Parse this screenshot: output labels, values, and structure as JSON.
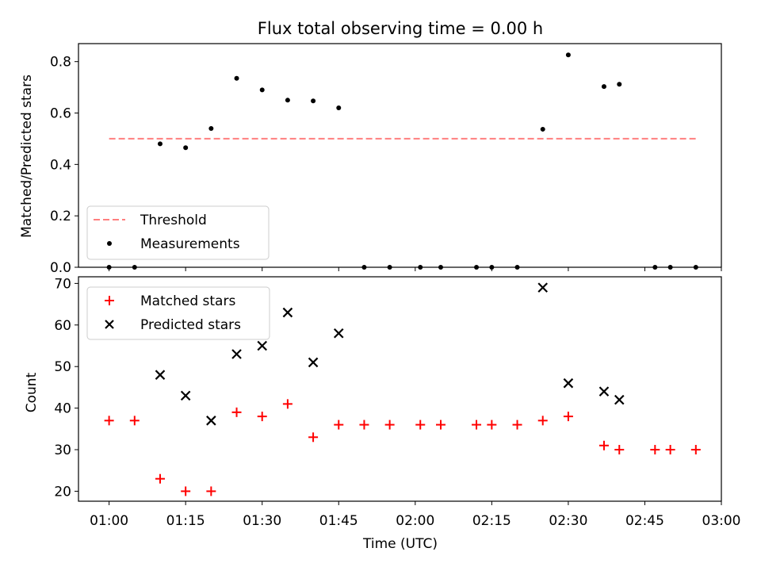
{
  "chart_data": [
    {
      "type": "scatter",
      "title": "Flux total observing time = 0.00 h",
      "xlabel": "",
      "ylabel": "Matched/Predicted stars",
      "ylim": [
        0,
        0.87
      ],
      "yticks": [
        "0.0",
        "0.2",
        "0.4",
        "0.6",
        "0.8"
      ],
      "grid": false,
      "legend": "lower-left",
      "threshold": {
        "name": "Threshold",
        "value": 0.5,
        "x_start": "01:00",
        "x_end": "02:55",
        "color": "#ff7f7f"
      },
      "series": [
        {
          "name": "Measurements",
          "color": "#000000",
          "points": [
            [
              "01:00",
              0.0
            ],
            [
              "01:05",
              0.0
            ],
            [
              "01:10",
              0.48
            ],
            [
              "01:15",
              0.465
            ],
            [
              "01:20",
              0.54
            ],
            [
              "01:25",
              0.735
            ],
            [
              "01:30",
              0.69
            ],
            [
              "01:35",
              0.65
            ],
            [
              "01:40",
              0.647
            ],
            [
              "01:45",
              0.62
            ],
            [
              "01:50",
              0.0
            ],
            [
              "01:55",
              0.0
            ],
            [
              "02:01",
              0.0
            ],
            [
              "02:05",
              0.0
            ],
            [
              "02:12",
              0.0
            ],
            [
              "02:15",
              0.0
            ],
            [
              "02:20",
              0.0
            ],
            [
              "02:25",
              0.537
            ],
            [
              "02:30",
              0.826
            ],
            [
              "02:37",
              0.703
            ],
            [
              "02:40",
              0.712
            ],
            [
              "02:47",
              0.0
            ],
            [
              "02:50",
              0.0
            ],
            [
              "02:55",
              0.0
            ]
          ]
        }
      ]
    },
    {
      "type": "scatter",
      "title": "",
      "xlabel": "Time (UTC)",
      "ylabel": "Count",
      "ylim": [
        17.6,
        71.6
      ],
      "yticks": [
        "20",
        "30",
        "40",
        "50",
        "60",
        "70"
      ],
      "xlim": [
        "00:54",
        "03:00"
      ],
      "xticks": [
        "01:00",
        "01:15",
        "01:30",
        "01:45",
        "02:00",
        "02:15",
        "02:30",
        "02:45",
        "03:00"
      ],
      "grid": false,
      "legend": "upper-left",
      "series": [
        {
          "name": "Matched stars",
          "marker": "plus",
          "color": "#ff0000",
          "points": [
            [
              "01:00",
              37
            ],
            [
              "01:05",
              37
            ],
            [
              "01:10",
              23
            ],
            [
              "01:15",
              20
            ],
            [
              "01:20",
              20
            ],
            [
              "01:25",
              39
            ],
            [
              "01:30",
              38
            ],
            [
              "01:35",
              41
            ],
            [
              "01:40",
              33
            ],
            [
              "01:45",
              36
            ],
            [
              "01:50",
              36
            ],
            [
              "01:55",
              36
            ],
            [
              "02:01",
              36
            ],
            [
              "02:05",
              36
            ],
            [
              "02:12",
              36
            ],
            [
              "02:15",
              36
            ],
            [
              "02:20",
              36
            ],
            [
              "02:25",
              37
            ],
            [
              "02:30",
              38
            ],
            [
              "02:37",
              31
            ],
            [
              "02:40",
              30
            ],
            [
              "02:47",
              30
            ],
            [
              "02:50",
              30
            ],
            [
              "02:55",
              30
            ]
          ]
        },
        {
          "name": "Predicted stars",
          "marker": "x",
          "color": "#000000",
          "points": [
            [
              "01:10",
              48
            ],
            [
              "01:15",
              43
            ],
            [
              "01:20",
              37
            ],
            [
              "01:25",
              53
            ],
            [
              "01:30",
              55
            ],
            [
              "01:35",
              63
            ],
            [
              "01:40",
              51
            ],
            [
              "01:45",
              58
            ],
            [
              "02:25",
              69
            ],
            [
              "02:30",
              46
            ],
            [
              "02:37",
              44
            ],
            [
              "02:40",
              42
            ]
          ]
        }
      ]
    }
  ]
}
